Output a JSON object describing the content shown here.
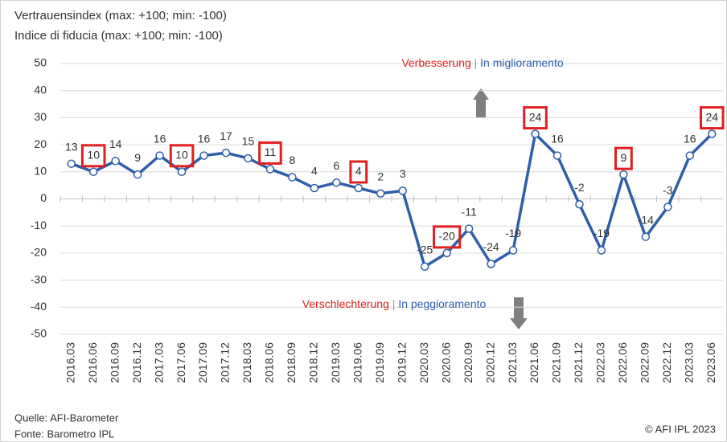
{
  "chart_data": {
    "type": "line",
    "title": "Vertrauensindex (max: +100; min: -100)",
    "subtitle": "Indice di fiducia (max: +100; min: -100)",
    "categories": [
      "2016.03",
      "2016.06",
      "2016.09",
      "2016.12",
      "2017.03",
      "2017.06",
      "2017.09",
      "2017.12",
      "2018.03",
      "2018.06",
      "2018.09",
      "2018.12",
      "2019.03",
      "2019.06",
      "2019.09",
      "2019.12",
      "2020.03",
      "2020.06",
      "2020.09",
      "2020.12",
      "2021.03",
      "2021.06",
      "2021.09",
      "2021.12",
      "2022.03",
      "2022.06",
      "2022.09",
      "2022.12",
      "2023.03",
      "2023.06"
    ],
    "series": [
      {
        "name": "Vertrauensindex",
        "color": "#2e5fa8",
        "values": [
          13,
          10,
          14,
          9,
          16,
          10,
          16,
          17,
          15,
          11,
          8,
          4,
          6,
          4,
          2,
          3,
          -25,
          -20,
          -11,
          -24,
          -19,
          24,
          16,
          -2,
          -19,
          9,
          -14,
          -3,
          16,
          24
        ]
      }
    ],
    "highlighted": [
      false,
      true,
      false,
      false,
      false,
      true,
      false,
      false,
      false,
      true,
      false,
      false,
      false,
      true,
      false,
      false,
      false,
      true,
      false,
      false,
      false,
      true,
      false,
      false,
      false,
      true,
      false,
      false,
      false,
      true
    ],
    "highlight_color": "#e02020",
    "ylim": [
      -50,
      50
    ],
    "yticks": [
      -50,
      -40,
      -30,
      -20,
      -10,
      0,
      10,
      20,
      30,
      40,
      50
    ],
    "grid": true,
    "annotations": [
      {
        "parts": [
          {
            "text": "Verbesserung",
            "color": "#e02020"
          },
          {
            "text": " | ",
            "color": "#999999"
          },
          {
            "text": "In miglioramento",
            "color": "#2e5fa8"
          }
        ]
      },
      {
        "parts": [
          {
            "text": "Verschlechterung",
            "color": "#e02020"
          },
          {
            "text": " | ",
            "color": "#999999"
          },
          {
            "text": "In peggioramento",
            "color": "#2e5fa8"
          }
        ]
      }
    ],
    "source": [
      "Quelle: AFI-Barometer",
      "Fonte: Barometro IPL"
    ],
    "copyright": "© AFI IPL 2023"
  }
}
